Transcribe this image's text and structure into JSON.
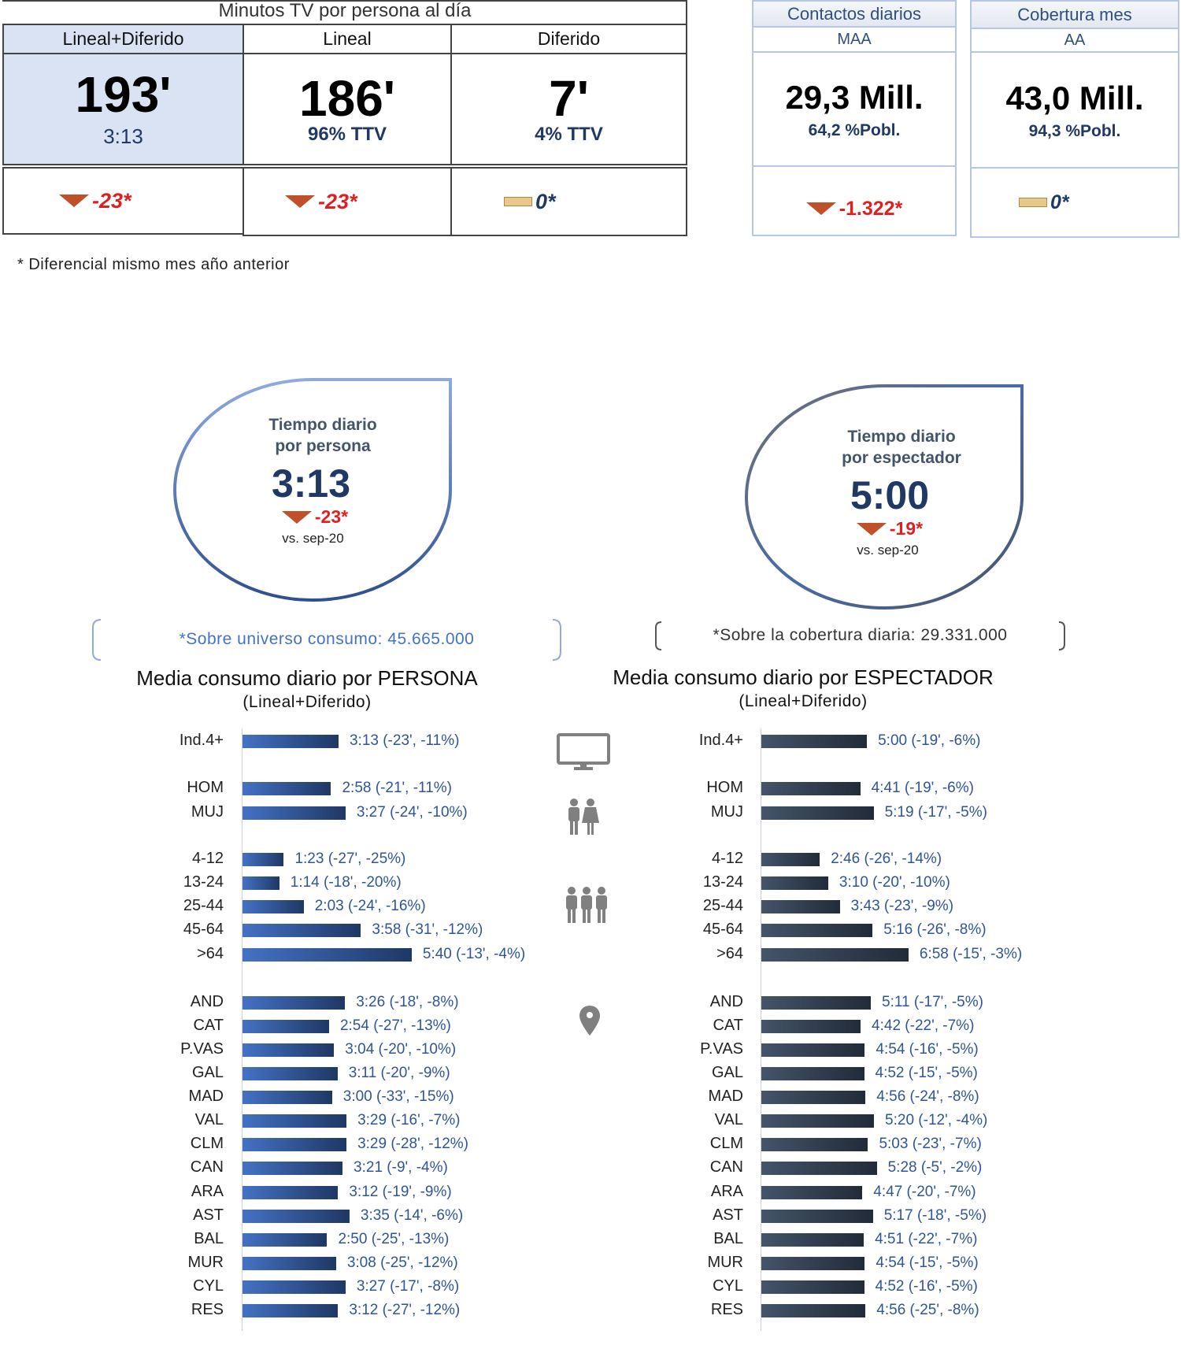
{
  "top_table": {
    "title": "Minutos TV por persona al día",
    "columns": [
      {
        "header": "Lineal+Diferido",
        "value": "193'",
        "sub": "3:13",
        "diff": "-23*",
        "trend": "down"
      },
      {
        "header": "Lineal",
        "value": "186'",
        "sub": "96% TTV",
        "diff": "-23*",
        "trend": "down"
      },
      {
        "header": "Diferido",
        "value": "7'",
        "sub": "4% TTV",
        "diff": "0*",
        "trend": "flat"
      }
    ],
    "footnote": "* Diferencial  mismo mes año anterior"
  },
  "side_boxes": [
    {
      "title": "Contactos diarios",
      "subtitle": "MAA",
      "value": "29,3 Mill.",
      "sub": "64,2 %Pobl.",
      "diff": "-1.322*",
      "trend": "down"
    },
    {
      "title": "Cobertura mes",
      "subtitle": "AA",
      "value": "43,0 Mill.",
      "sub": "94,3 %Pobl.",
      "diff": "0*",
      "trend": "flat"
    }
  ],
  "drops": [
    {
      "title1": "Tiempo diario",
      "title2": "por persona",
      "value": "3:13",
      "diff": "-23*",
      "vs": "vs. sep-20",
      "note": "*Sobre universo consumo: 45.665.000"
    },
    {
      "title1": "Tiempo diario",
      "title2": "por espectador",
      "value": "5:00",
      "diff": "-19*",
      "vs": "vs. sep-20",
      "note": "*Sobre la cobertura diaria: 29.331.000"
    }
  ],
  "colors": {
    "persona_bar": "#4472c4",
    "espectador_bar": "#2e3a4c",
    "down": "#c0502a",
    "neg_text": "#e02020",
    "value_text": "#2f5597"
  },
  "group_icons": [
    "tv-icon",
    "couple-icon",
    "group-icon",
    "location-pin-icon"
  ],
  "chart_data": [
    {
      "type": "bar",
      "orientation": "horizontal",
      "title": "Media consumo diario por PERSONA",
      "subtitle": "(Lineal+Diferido)",
      "categories": [
        "Ind.4+",
        "HOM",
        "MUJ",
        "4-12",
        "13-24",
        "25-44",
        "45-64",
        ">64",
        "AND",
        "CAT",
        "P.VAS",
        "GAL",
        "MAD",
        "VAL",
        "CLM",
        "CAN",
        "ARA",
        "AST",
        "BAL",
        "MUR",
        "CYL",
        "RES"
      ],
      "values": [
        "3:13",
        "2:58",
        "3:27",
        "1:23",
        "1:14",
        "2:03",
        "3:58",
        "5:40",
        "3:26",
        "2:54",
        "3:04",
        "3:11",
        "3:00",
        "3:29",
        "3:29",
        "3:21",
        "3:12",
        "3:35",
        "2:50",
        "3:08",
        "3:27",
        "3:12"
      ],
      "changes": [
        "(-23', -11%)",
        "(-21', -11%)",
        "(-24', -10%)",
        "(-27', -25%)",
        "(-18', -20%)",
        "(-24', -16%)",
        "(-31', -12%)",
        "(-13', -4%)",
        "(-18', -8%)",
        "(-27', -13%)",
        "(-20', -10%)",
        "(-20', -9%)",
        "(-33', -15%)",
        "(-16', -7%)",
        "(-28', -12%)",
        "(-9', -4%)",
        "(-19', -9%)",
        "(-14', -6%)",
        "(-25', -13%)",
        "(-25', -12%)",
        "(-17', -8%)",
        "(-27', -12%)"
      ]
    },
    {
      "type": "bar",
      "orientation": "horizontal",
      "title": "Media consumo diario por ESPECTADOR",
      "subtitle": "(Lineal+Diferido)",
      "categories": [
        "Ind.4+",
        "HOM",
        "MUJ",
        "4-12",
        "13-24",
        "25-44",
        "45-64",
        ">64",
        "AND",
        "CAT",
        "P.VAS",
        "GAL",
        "MAD",
        "VAL",
        "CLM",
        "CAN",
        "ARA",
        "AST",
        "BAL",
        "MUR",
        "CYL",
        "RES"
      ],
      "values": [
        "5:00",
        "4:41",
        "5:19",
        "2:46",
        "3:10",
        "3:43",
        "5:16",
        "6:58",
        "5:11",
        "4:42",
        "4:54",
        "4:52",
        "4:56",
        "5:20",
        "5:03",
        "5:28",
        "4:47",
        "5:17",
        "4:51",
        "4:54",
        "4:52",
        "4:56"
      ],
      "changes": [
        "(-19', -6%)",
        "(-19', -6%)",
        "(-17', -5%)",
        "(-26', -14%)",
        "(-20', -10%)",
        "(-23', -9%)",
        "(-26', -8%)",
        "(-15', -3%)",
        "(-17', -5%)",
        "(-22', -7%)",
        "(-16', -5%)",
        "(-15', -5%)",
        "(-24', -8%)",
        "(-12', -4%)",
        "(-23', -7%)",
        "(-5', -2%)",
        "(-20', -7%)",
        "(-18', -5%)",
        "(-22', -7%)",
        "(-15', -5%)",
        "(-16', -5%)",
        "(-25', -8%)"
      ]
    }
  ]
}
